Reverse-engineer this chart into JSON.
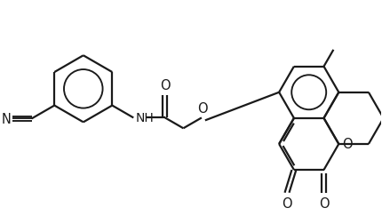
{
  "bg_color": "#ffffff",
  "line_color": "#1a1a1a",
  "line_width": 1.6,
  "font_size": 9.5
}
